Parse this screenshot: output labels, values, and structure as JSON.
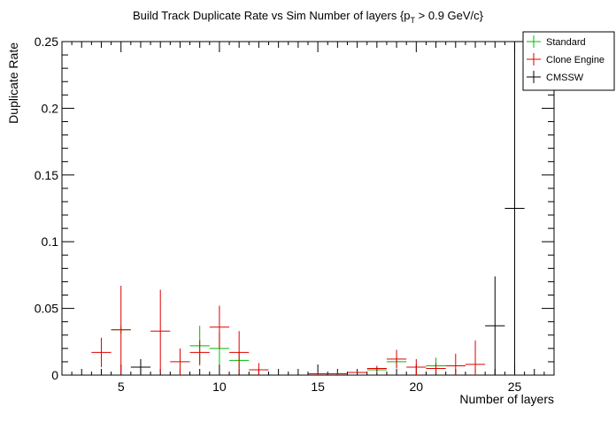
{
  "chart_data": {
    "type": "scatter",
    "title": "Build Track Duplicate Rate vs Sim Number of layers {p",
    "title_sub": "T",
    "title_tail": " > 0.9 GeV/c}",
    "xlabel": "Number of layers",
    "ylabel": "Duplicate Rate",
    "xlim": [
      2,
      27
    ],
    "ylim": [
      0,
      0.25
    ],
    "x_ticks": [
      5,
      10,
      15,
      20,
      25
    ],
    "y_ticks": [
      0,
      0.05,
      0.1,
      0.15,
      0.2,
      0.25
    ],
    "y_tick_labels": [
      "0",
      "0.05",
      "0.1",
      "0.15",
      "0.2",
      "0.25"
    ],
    "grid": false,
    "legend_position": "top-right",
    "series": [
      {
        "name": "Standard",
        "color": "#00bb00",
        "points": [
          {
            "x": 5,
            "y": 0.034,
            "err": 0.003
          },
          {
            "x": 9,
            "y": 0.022,
            "err": 0.015
          },
          {
            "x": 10,
            "y": 0.02,
            "err": 0.012
          },
          {
            "x": 11,
            "y": 0.011,
            "err": 0.006
          },
          {
            "x": 15,
            "y": 0.001,
            "err": 0.001
          },
          {
            "x": 16,
            "y": 0.001,
            "err": 0.001
          },
          {
            "x": 17,
            "y": 0.002,
            "err": 0.001
          },
          {
            "x": 18,
            "y": 0.004,
            "err": 0.002
          },
          {
            "x": 19,
            "y": 0.01,
            "err": 0.004
          },
          {
            "x": 21,
            "y": 0.007,
            "err": 0.006
          }
        ]
      },
      {
        "name": "Clone Engine",
        "color": "#dd0000",
        "points": [
          {
            "x": 4,
            "y": 0.017,
            "err": 0.011
          },
          {
            "x": 5,
            "y": 0.034,
            "err": 0.033
          },
          {
            "x": 7,
            "y": 0.033,
            "err": 0.031
          },
          {
            "x": 8,
            "y": 0.01,
            "err": 0.01
          },
          {
            "x": 9,
            "y": 0.017,
            "err": 0.009
          },
          {
            "x": 10,
            "y": 0.036,
            "err": 0.016
          },
          {
            "x": 11,
            "y": 0.017,
            "err": 0.016
          },
          {
            "x": 12,
            "y": 0.004,
            "err": 0.005
          },
          {
            "x": 15,
            "y": 0.001,
            "err": 0.001
          },
          {
            "x": 16,
            "y": 0.001,
            "err": 0.002
          },
          {
            "x": 17,
            "y": 0.002,
            "err": 0.001
          },
          {
            "x": 18,
            "y": 0.005,
            "err": 0.002
          },
          {
            "x": 19,
            "y": 0.012,
            "err": 0.007
          },
          {
            "x": 20,
            "y": 0.006,
            "err": 0.006
          },
          {
            "x": 21,
            "y": 0.005,
            "err": 0.004
          },
          {
            "x": 22,
            "y": 0.007,
            "err": 0.009
          },
          {
            "x": 23,
            "y": 0.008,
            "err": 0.018
          }
        ]
      },
      {
        "name": "CMSSW",
        "color": "#000000",
        "points": [
          {
            "x": 6,
            "y": 0.006,
            "err": 0.006
          },
          {
            "x": 24,
            "y": 0.037,
            "err": 0.037
          },
          {
            "x": 25,
            "y": 0.125,
            "err": 0.125
          }
        ]
      }
    ]
  }
}
